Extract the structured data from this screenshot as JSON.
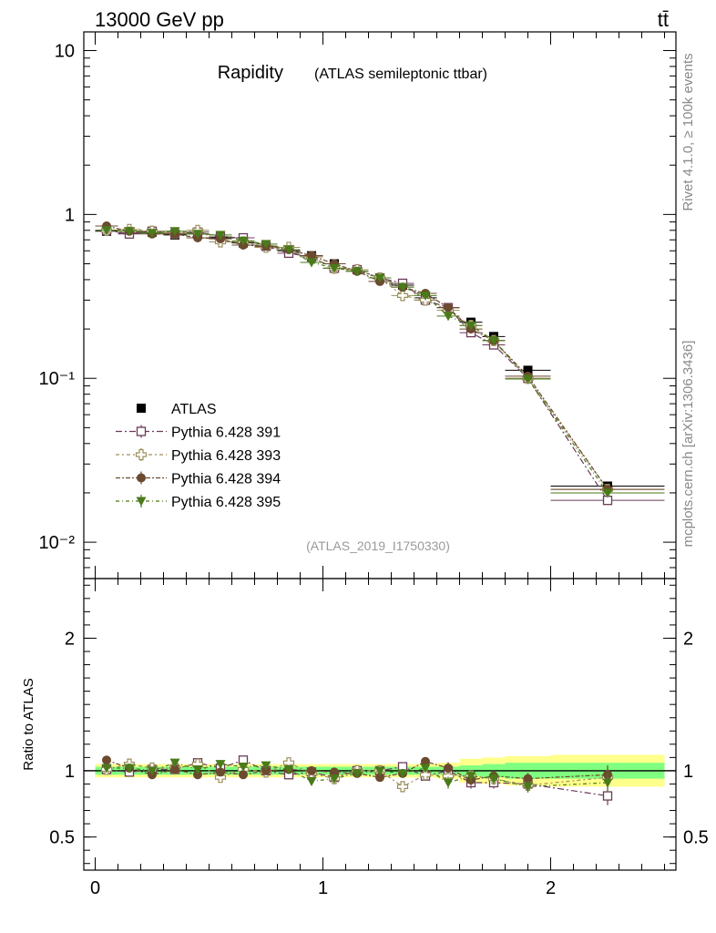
{
  "header": {
    "process_label": "13000 GeV pp",
    "final_state_label": "tt̄"
  },
  "side_labels": {
    "rivet": "Rivet 4.1.0, ≥ 100k events",
    "source": "mcplots.cern.ch [arXiv:1306.3436]"
  },
  "analysis_id": "(ATLAS_2019_I1750330)",
  "colors": {
    "atlas": "#000000",
    "p391": "#6b3a5a",
    "p393": "#9c8f5c",
    "p394": "#6b4a2e",
    "p395": "#4a7a1a",
    "band_outer": "#ffff8c",
    "band_inner": "#80ff80"
  },
  "chart_data": [
    {
      "type": "scatter",
      "title": "Rapidity",
      "subtitle": "(ATLAS semileptonic ttbar)",
      "xlabel": "",
      "ylabel": "",
      "yscale": "log",
      "xlim": [
        -0.05,
        2.55
      ],
      "ylim": [
        0.006,
        13
      ],
      "y_ticks": [
        {
          "value": 10,
          "label": "10"
        },
        {
          "value": 1,
          "label": "1"
        },
        {
          "value": 0.1,
          "label": "10⁻¹"
        },
        {
          "value": 0.01,
          "label": "10⁻²"
        }
      ],
      "x": [
        0.05,
        0.15,
        0.25,
        0.35,
        0.45,
        0.55,
        0.65,
        0.75,
        0.85,
        0.95,
        1.05,
        1.15,
        1.25,
        1.35,
        1.45,
        1.55,
        1.65,
        1.75,
        1.9,
        2.25
      ],
      "series": [
        {
          "name": "ATLAS",
          "key": "atlas",
          "marker": "square-filled",
          "values": [
            0.79,
            0.77,
            0.78,
            0.75,
            0.76,
            0.72,
            0.67,
            0.64,
            0.6,
            0.56,
            0.5,
            0.46,
            0.41,
            0.37,
            0.31,
            0.27,
            0.22,
            0.18,
            0.112,
            0.022
          ]
        },
        {
          "name": "Pythia 6.428 391",
          "key": "p391",
          "marker": "square-open",
          "values": [
            0.8,
            0.76,
            0.79,
            0.76,
            0.78,
            0.73,
            0.72,
            0.64,
            0.58,
            0.55,
            0.47,
            0.46,
            0.41,
            0.38,
            0.3,
            0.27,
            0.19,
            0.16,
            0.1,
            0.018
          ]
        },
        {
          "name": "Pythia 6.428 393",
          "key": "p393",
          "marker": "cross-open",
          "values": [
            0.8,
            0.81,
            0.79,
            0.77,
            0.8,
            0.68,
            0.68,
            0.63,
            0.63,
            0.55,
            0.47,
            0.46,
            0.41,
            0.32,
            0.3,
            0.26,
            0.21,
            0.17,
            0.1,
            0.021
          ]
        },
        {
          "name": "Pythia 6.428 394",
          "key": "p394",
          "marker": "circle-filled",
          "values": [
            0.85,
            0.79,
            0.76,
            0.76,
            0.72,
            0.71,
            0.65,
            0.64,
            0.61,
            0.56,
            0.5,
            0.45,
            0.39,
            0.36,
            0.33,
            0.27,
            0.2,
            0.17,
            0.103,
            0.021
          ]
        },
        {
          "name": "Pythia 6.428 395",
          "key": "p395",
          "marker": "triangle-down-filled",
          "values": [
            0.8,
            0.79,
            0.77,
            0.79,
            0.76,
            0.75,
            0.69,
            0.66,
            0.61,
            0.51,
            0.47,
            0.45,
            0.41,
            0.36,
            0.32,
            0.24,
            0.21,
            0.17,
            0.099,
            0.02
          ]
        }
      ],
      "legend_position": "bottom-left"
    },
    {
      "type": "scatter",
      "title": "",
      "xlabel": "",
      "ylabel": "Ratio to ATLAS",
      "xlim": [
        -0.05,
        2.55
      ],
      "ylim": [
        0.25,
        2.45
      ],
      "x_ticks": [
        {
          "value": 0,
          "label": "0"
        },
        {
          "value": 1,
          "label": "1"
        },
        {
          "value": 2,
          "label": "2"
        }
      ],
      "y_ticks": [
        {
          "value": 2,
          "label": "2"
        },
        {
          "value": 1,
          "label": "1"
        },
        {
          "value": 0.5,
          "label": "0.5"
        }
      ],
      "x": [
        0.05,
        0.15,
        0.25,
        0.35,
        0.45,
        0.55,
        0.65,
        0.75,
        0.85,
        0.95,
        1.05,
        1.15,
        1.25,
        1.35,
        1.45,
        1.55,
        1.65,
        1.75,
        1.9,
        2.25
      ],
      "band_edges": [
        0.0,
        0.1,
        0.2,
        0.3,
        0.4,
        0.5,
        0.6,
        0.7,
        0.8,
        0.9,
        1.0,
        1.1,
        1.2,
        1.3,
        1.4,
        1.5,
        1.6,
        1.7,
        1.8,
        2.0,
        2.5
      ],
      "band_inner": [
        0.03,
        0.03,
        0.03,
        0.03,
        0.03,
        0.03,
        0.03,
        0.03,
        0.03,
        0.03,
        0.03,
        0.03,
        0.03,
        0.03,
        0.03,
        0.03,
        0.04,
        0.05,
        0.06,
        0.06
      ],
      "band_outer": [
        0.05,
        0.05,
        0.05,
        0.05,
        0.05,
        0.05,
        0.05,
        0.05,
        0.05,
        0.05,
        0.05,
        0.05,
        0.05,
        0.05,
        0.05,
        0.06,
        0.09,
        0.1,
        0.11,
        0.12
      ],
      "series": [
        {
          "name": "Pythia 6.428 391",
          "key": "p391",
          "marker": "square-open",
          "values": [
            1.01,
            0.99,
            1.01,
            1.01,
            1.06,
            1.02,
            1.08,
            1.0,
            0.97,
            0.99,
            0.95,
            1.0,
            1.0,
            1.03,
            0.96,
            1.0,
            0.91,
            0.91,
            0.9,
            0.81
          ]
        },
        {
          "name": "Pythia 6.428 393",
          "key": "p393",
          "marker": "cross-open",
          "values": [
            1.01,
            1.05,
            1.02,
            1.02,
            1.05,
            0.95,
            1.01,
            0.99,
            1.06,
            0.98,
            0.94,
            1.0,
            1.0,
            0.88,
            0.97,
            0.96,
            0.96,
            0.94,
            0.89,
            0.95
          ]
        },
        {
          "name": "Pythia 6.428 394",
          "key": "p394",
          "marker": "circle-filled",
          "values": [
            1.08,
            1.02,
            0.97,
            1.01,
            0.97,
            0.99,
            0.97,
            1.0,
            1.01,
            1.0,
            0.99,
            0.98,
            0.95,
            0.98,
            1.07,
            1.02,
            0.93,
            0.96,
            0.94,
            0.97
          ]
        },
        {
          "name": "Pythia 6.428 395",
          "key": "p395",
          "marker": "triangle-down-filled",
          "values": [
            1.02,
            1.02,
            1.0,
            1.06,
            1.01,
            1.05,
            1.03,
            1.04,
            1.01,
            0.92,
            0.94,
            0.98,
            1.0,
            0.98,
            1.02,
            0.91,
            0.96,
            0.94,
            0.88,
            0.91
          ]
        }
      ]
    }
  ]
}
